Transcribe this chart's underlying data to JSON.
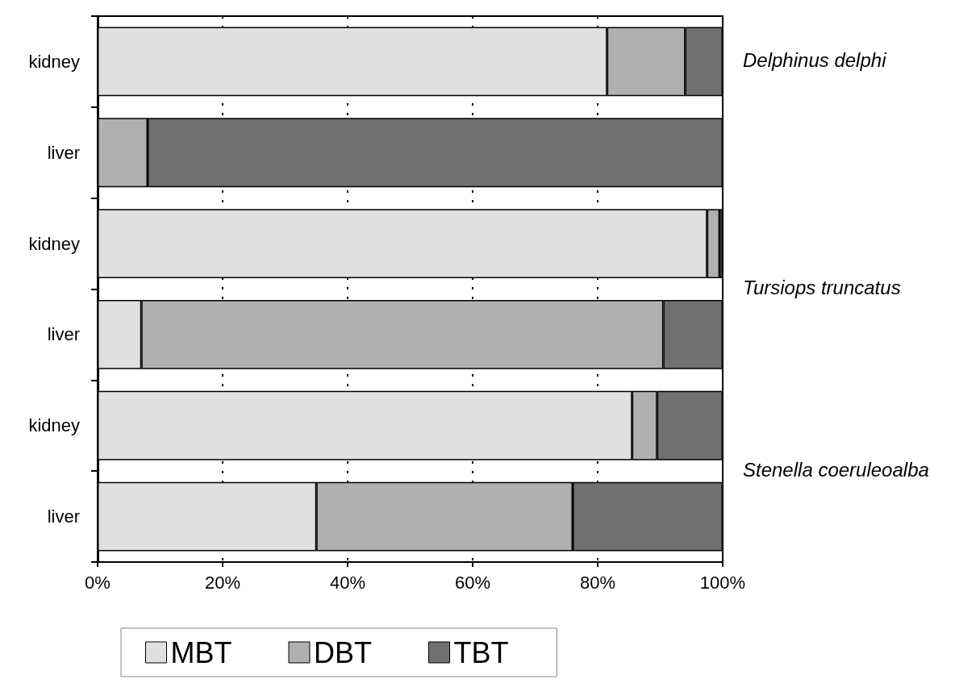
{
  "chart_data": {
    "type": "bar",
    "orientation": "horizontal",
    "stacked": true,
    "categories": [
      "kidney",
      "liver",
      "kidney",
      "liver",
      "kidney",
      "liver"
    ],
    "series": [
      {
        "name": "MBT",
        "color": "#e0e0e0",
        "values": [
          81.5,
          0,
          97.5,
          7,
          85.5,
          35
        ]
      },
      {
        "name": "DBT",
        "color": "#b0b0b0",
        "values": [
          12.5,
          8,
          2,
          83.5,
          4,
          41
        ]
      },
      {
        "name": "TBT",
        "color": "#707070",
        "values": [
          6,
          92,
          0.5,
          9.5,
          10.5,
          24
        ]
      }
    ],
    "xlim": [
      0,
      100
    ],
    "xticks": [
      {
        "value": 0,
        "label": "0%"
      },
      {
        "value": 20,
        "label": "20%"
      },
      {
        "value": 40,
        "label": "40%"
      },
      {
        "value": 60,
        "label": "60%"
      },
      {
        "value": 80,
        "label": "80%"
      },
      {
        "value": 100,
        "label": "100%"
      }
    ],
    "grid": "x",
    "legend": "bottom",
    "annotations": [
      "Delphinus delphi",
      "Tursiops truncatus",
      "Stenella coeruleoalba"
    ]
  }
}
